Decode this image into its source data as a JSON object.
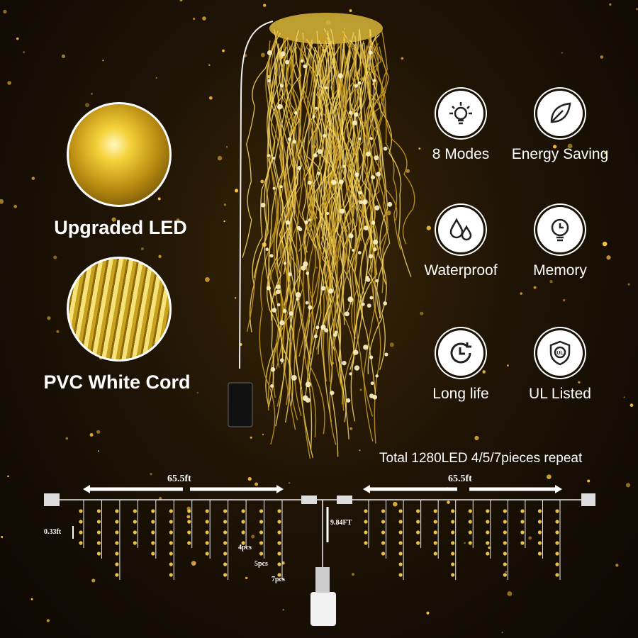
{
  "left_panel": {
    "upgraded_led_label": "Upgraded LED",
    "pvc_cord_label": "PVC White Cord"
  },
  "features": [
    {
      "label": "8 Modes",
      "icon": "bulb-icon"
    },
    {
      "label": "Energy Saving",
      "icon": "leaf-icon"
    },
    {
      "label": "Waterproof",
      "icon": "water-drops-icon"
    },
    {
      "label": "Memory",
      "icon": "bulb-clock-icon"
    },
    {
      "label": "Long life",
      "icon": "clock-icon"
    },
    {
      "label": "UL Listed",
      "icon": "ul-shield-icon"
    }
  ],
  "diagram": {
    "total_text": "Total 1280LED 4/5/7pieces repeat",
    "left_length": "65.5ft",
    "right_length": "65.5ft",
    "lead_length": "9.84FT",
    "spacing": "0.33ft",
    "drop_labels": [
      "4pcs",
      "5pcs",
      "7pcs"
    ]
  },
  "colors": {
    "accent": "#f5c842",
    "background": "#1e1305",
    "icon_bg": "#ffffff"
  }
}
